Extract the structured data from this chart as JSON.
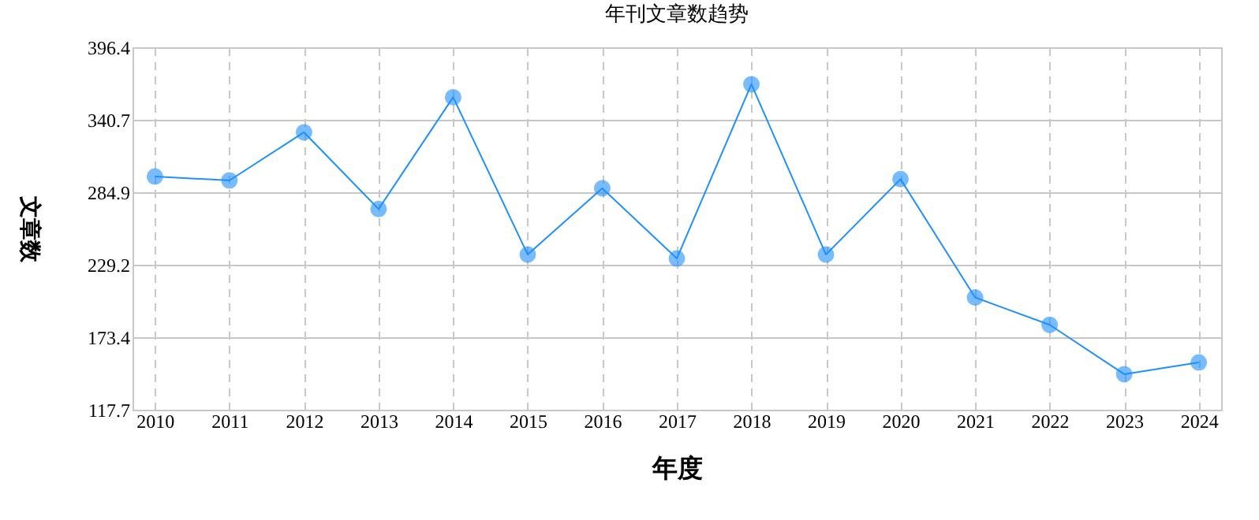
{
  "chart_data": {
    "type": "line",
    "title": "年刊文章数趋势",
    "xlabel": "年度",
    "ylabel": "文章数",
    "categories": [
      "2010",
      "2011",
      "2012",
      "2013",
      "2014",
      "2015",
      "2016",
      "2017",
      "2018",
      "2019",
      "2020",
      "2021",
      "2022",
      "2023",
      "2024"
    ],
    "series": [
      {
        "color": "#1e90ff",
        "values": [
          297,
          294,
          331,
          272,
          358,
          237,
          288,
          234,
          368,
          237,
          295,
          204,
          183,
          145,
          154
        ]
      }
    ],
    "ylim": [
      117.7,
      396.4
    ],
    "yticks": [
      117.7,
      173.4,
      229.2,
      284.9,
      340.7,
      396.4
    ],
    "grid": true,
    "marker": "circle",
    "line_style": "solid"
  }
}
